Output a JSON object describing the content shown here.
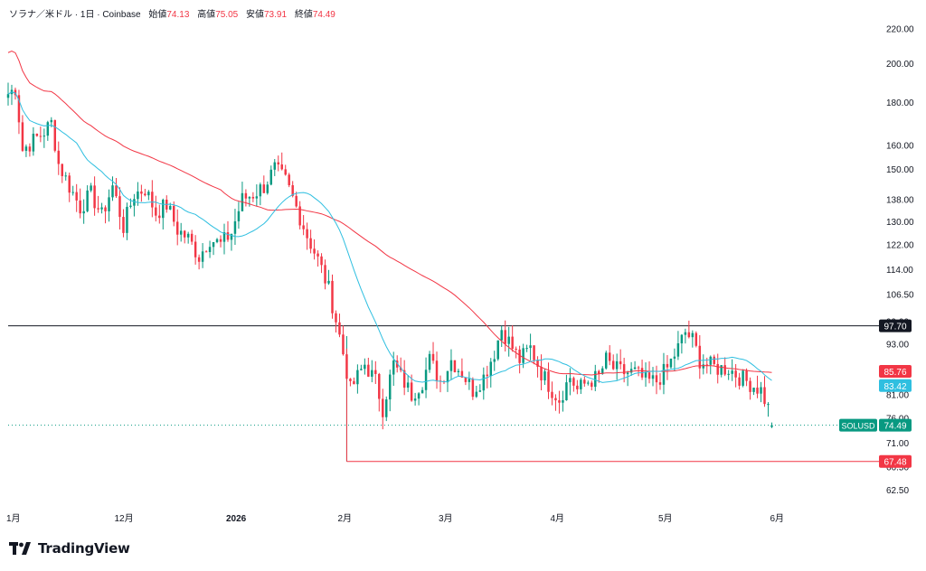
{
  "header": {
    "symbol_desc": "ソラナ／米ドル · 1日 · Coinbase",
    "open_label": "始値",
    "open_value": "74.13",
    "high_label": "高値",
    "high_value": "75.05",
    "low_label": "安値",
    "low_value": "73.91",
    "close_label": "終値",
    "close_value": "74.49"
  },
  "brand": {
    "name": "TradingView"
  },
  "colors": {
    "up": "#089981",
    "down": "#f23645",
    "ma_fast": "#2fbfe0",
    "ma_slow": "#f23645",
    "level_line": "#131722",
    "axis_text": "#131722",
    "current_price_line": "#089981"
  },
  "chart_data": {
    "type": "candlestick",
    "title": "ソラナ／米ドル · 1日 · Coinbase",
    "symbol": "SOLUSD",
    "scale": "log",
    "ylim": [
      60.5,
      232
    ],
    "grid": false,
    "y_ticks": [
      "220.00",
      "200.00",
      "180.00",
      "160.00",
      "150.00",
      "138.00",
      "130.00",
      "122.00",
      "114.00",
      "106.50",
      "99.00",
      "93.00",
      "87.00",
      "81.00",
      "76.00",
      "71.00",
      "66.50",
      "62.50"
    ],
    "x_labels": [
      {
        "label": "1月",
        "day": 0
      },
      {
        "label": "12月",
        "day": 30
      },
      {
        "label": "2026",
        "day": 61
      },
      {
        "label": "2月",
        "day": 92
      },
      {
        "label": "3月",
        "day": 120
      },
      {
        "label": "4月",
        "day": 151
      },
      {
        "label": "5月",
        "day": 181
      },
      {
        "label": "6月",
        "day": 212
      }
    ],
    "x_day_range": [
      0,
      240
    ],
    "price_anchors": [
      [
        0,
        184
      ],
      [
        2,
        187
      ],
      [
        4,
        158
      ],
      [
        7,
        162
      ],
      [
        10,
        166
      ],
      [
        12,
        170
      ],
      [
        14,
        152
      ],
      [
        17,
        143
      ],
      [
        20,
        135
      ],
      [
        23,
        140
      ],
      [
        26,
        132
      ],
      [
        29,
        143
      ],
      [
        32,
        128
      ],
      [
        35,
        140
      ],
      [
        38,
        142
      ],
      [
        41,
        133
      ],
      [
        44,
        136
      ],
      [
        47,
        127
      ],
      [
        50,
        124
      ],
      [
        53,
        118
      ],
      [
        56,
        124
      ],
      [
        59,
        122
      ],
      [
        62,
        126
      ],
      [
        65,
        138
      ],
      [
        68,
        140
      ],
      [
        71,
        143
      ],
      [
        74,
        150
      ],
      [
        77,
        145
      ],
      [
        80,
        135
      ],
      [
        83,
        125
      ],
      [
        86,
        117
      ],
      [
        89,
        108
      ],
      [
        92,
        95
      ],
      [
        95,
        82
      ],
      [
        97,
        85
      ],
      [
        99,
        88
      ],
      [
        102,
        84
      ],
      [
        104,
        78
      ],
      [
        107,
        88
      ],
      [
        109,
        85
      ],
      [
        112,
        81
      ],
      [
        115,
        84
      ],
      [
        117,
        89
      ],
      [
        120,
        84
      ],
      [
        123,
        89
      ],
      [
        126,
        86
      ],
      [
        129,
        82
      ],
      [
        132,
        85
      ],
      [
        135,
        91
      ],
      [
        137,
        97
      ],
      [
        140,
        92
      ],
      [
        142,
        89
      ],
      [
        145,
        92
      ],
      [
        148,
        86
      ],
      [
        151,
        82
      ],
      [
        153,
        80
      ],
      [
        156,
        85
      ],
      [
        158,
        82
      ],
      [
        161,
        84
      ],
      [
        164,
        85
      ],
      [
        166,
        89
      ],
      [
        168,
        87
      ],
      [
        171,
        86
      ],
      [
        174,
        86
      ],
      [
        177,
        84
      ],
      [
        180,
        84
      ],
      [
        183,
        87
      ],
      [
        186,
        92
      ],
      [
        188,
        96
      ],
      [
        190,
        94
      ],
      [
        192,
        89
      ],
      [
        194,
        88
      ],
      [
        197,
        87
      ],
      [
        200,
        87
      ],
      [
        203,
        85
      ],
      [
        205,
        84
      ],
      [
        207,
        83
      ],
      [
        209,
        82
      ],
      [
        211,
        78
      ],
      [
        212,
        74.49
      ]
    ],
    "candles_count": 213,
    "last_price": {
      "open": 74.13,
      "high": 75.05,
      "low": 73.91,
      "close": 74.49
    },
    "moving_averages": [
      {
        "period_hint": "fast",
        "color": "#2fbfe0",
        "last_value": 83.42
      },
      {
        "period_hint": "slow",
        "color": "#f23645",
        "last_value": 85.76
      }
    ],
    "horizontal_levels": [
      {
        "value": 97.7,
        "label": "97.70",
        "color": "#131722"
      },
      {
        "value": 67.48,
        "label": "67.48",
        "color": "#f23645",
        "start_day": 94
      }
    ],
    "price_labels": [
      {
        "label": "85.76",
        "color": "#f23645"
      },
      {
        "label": "83.42",
        "color": "#2fbfe0"
      },
      {
        "label": "74.49",
        "color": "#089981",
        "symbol": "SOLUSD"
      }
    ]
  }
}
